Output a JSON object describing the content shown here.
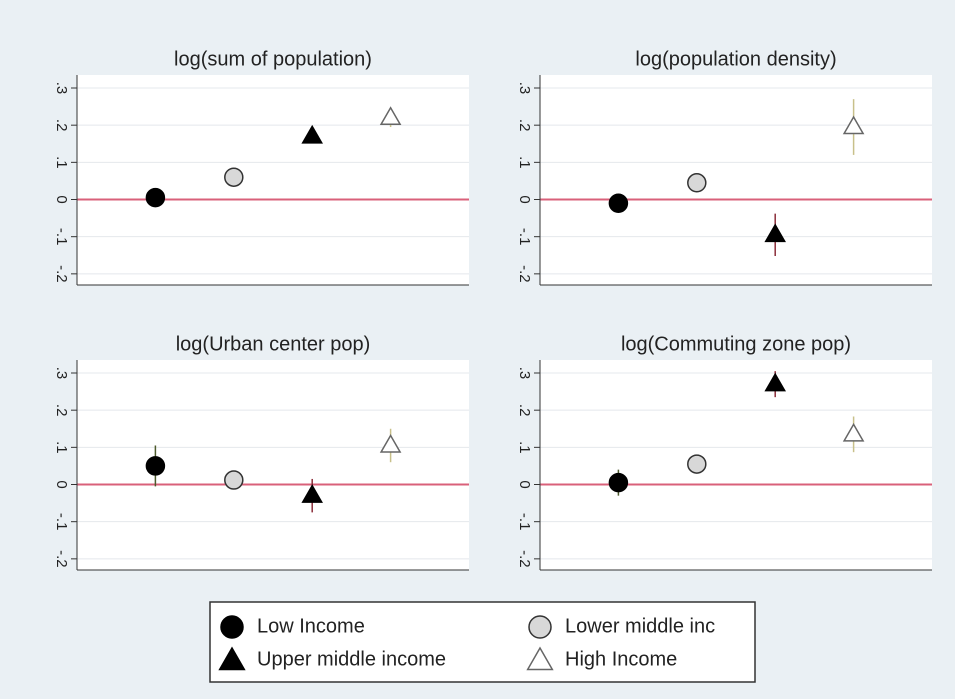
{
  "chart_data": [
    {
      "type": "dot-errorbar",
      "title": "log(sum of population)",
      "ylim": [
        -0.23,
        0.335
      ],
      "xlim": [
        0,
        5
      ],
      "yticks": [
        {
          "value": -0.2,
          "label": "-.2"
        },
        {
          "value": -0.1,
          "label": "-.1"
        },
        0,
        {
          "value": 0.1,
          "label": ".1"
        },
        {
          "value": 0.2,
          "label": ".2"
        },
        {
          "value": 0.3,
          "label": ".3"
        }
      ],
      "grid": true,
      "refline": {
        "value": 0,
        "color": "#d9607a"
      },
      "series": [
        {
          "name": "Low Income",
          "marker": "circle",
          "color": "#000000",
          "stroke": "#000000",
          "error_color": "#4d5a2c",
          "values": [
            0.005
          ],
          "errors": [
            0.01
          ]
        },
        {
          "name": "Lower middle inc",
          "marker": "circle",
          "color": "#d8d8d8",
          "stroke": "#333333",
          "error_color": "#8fa0b0",
          "values": [
            0.06
          ],
          "errors": [
            0.01
          ]
        },
        {
          "name": "Upper middle income",
          "marker": "triangle",
          "color": "#000000",
          "stroke": "#000000",
          "error_color": "#8b2d3a",
          "values": [
            0.17
          ],
          "errors": [
            0.015
          ]
        },
        {
          "name": "High Income",
          "marker": "triangle",
          "color": "#ffffff",
          "stroke": "#666666",
          "error_color": "#c8c08a",
          "values": [
            0.22
          ],
          "errors": [
            0.025
          ]
        }
      ]
    },
    {
      "type": "dot-errorbar",
      "title": "log(population density)",
      "ylim": [
        -0.23,
        0.335
      ],
      "xlim": [
        0,
        5
      ],
      "yticks": [
        {
          "value": -0.2,
          "label": "-.2"
        },
        {
          "value": -0.1,
          "label": "-.1"
        },
        0,
        {
          "value": 0.1,
          "label": ".1"
        },
        {
          "value": 0.2,
          "label": ".2"
        },
        {
          "value": 0.3,
          "label": ".3"
        }
      ],
      "grid": true,
      "refline": {
        "value": 0,
        "color": "#d9607a"
      },
      "series": [
        {
          "name": "Low Income",
          "marker": "circle",
          "color": "#000000",
          "stroke": "#000000",
          "error_color": "#4d5a2c",
          "values": [
            -0.01
          ],
          "errors": [
            0.01
          ]
        },
        {
          "name": "Lower middle inc",
          "marker": "circle",
          "color": "#d8d8d8",
          "stroke": "#333333",
          "error_color": "#8fa0b0",
          "values": [
            0.045
          ],
          "errors": [
            0.01
          ]
        },
        {
          "name": "Upper middle income",
          "marker": "triangle",
          "color": "#000000",
          "stroke": "#000000",
          "error_color": "#8b2d3a",
          "values": [
            -0.095
          ],
          "errors": [
            0.057
          ]
        },
        {
          "name": "High Income",
          "marker": "triangle",
          "color": "#ffffff",
          "stroke": "#666666",
          "error_color": "#c8c08a",
          "values": [
            0.195
          ],
          "errors": [
            0.075
          ]
        }
      ]
    },
    {
      "type": "dot-errorbar",
      "title": "log(Urban center pop)",
      "ylim": [
        -0.23,
        0.335
      ],
      "xlim": [
        0,
        5
      ],
      "yticks": [
        {
          "value": -0.2,
          "label": "-.2"
        },
        {
          "value": -0.1,
          "label": "-.1"
        },
        0,
        {
          "value": 0.1,
          "label": ".1"
        },
        {
          "value": 0.2,
          "label": ".2"
        },
        {
          "value": 0.3,
          "label": ".3"
        }
      ],
      "grid": true,
      "refline": {
        "value": 0,
        "color": "#d9607a"
      },
      "series": [
        {
          "name": "Low Income",
          "marker": "circle",
          "color": "#000000",
          "stroke": "#000000",
          "error_color": "#4d5a2c",
          "values": [
            0.05
          ],
          "errors": [
            0.055
          ]
        },
        {
          "name": "Lower middle inc",
          "marker": "circle",
          "color": "#d8d8d8",
          "stroke": "#333333",
          "error_color": "#8fa0b0",
          "values": [
            0.012
          ],
          "errors": [
            0.01
          ]
        },
        {
          "name": "Upper middle income",
          "marker": "triangle",
          "color": "#000000",
          "stroke": "#000000",
          "error_color": "#8b2d3a",
          "values": [
            -0.03
          ],
          "errors": [
            0.045
          ]
        },
        {
          "name": "High Income",
          "marker": "triangle",
          "color": "#ffffff",
          "stroke": "#666666",
          "error_color": "#c8c08a",
          "values": [
            0.105
          ],
          "errors": [
            0.045
          ]
        }
      ]
    },
    {
      "type": "dot-errorbar",
      "title": "log(Commuting zone pop)",
      "ylim": [
        -0.23,
        0.335
      ],
      "xlim": [
        0,
        5
      ],
      "yticks": [
        {
          "value": -0.2,
          "label": "-.2"
        },
        {
          "value": -0.1,
          "label": "-.1"
        },
        0,
        {
          "value": 0.1,
          "label": ".1"
        },
        {
          "value": 0.2,
          "label": ".2"
        },
        {
          "value": 0.3,
          "label": ".3"
        }
      ],
      "grid": true,
      "refline": {
        "value": 0,
        "color": "#d9607a"
      },
      "series": [
        {
          "name": "Low Income",
          "marker": "circle",
          "color": "#000000",
          "stroke": "#000000",
          "error_color": "#4d5a2c",
          "values": [
            0.005
          ],
          "errors": [
            0.035
          ]
        },
        {
          "name": "Lower middle inc",
          "marker": "circle",
          "color": "#d8d8d8",
          "stroke": "#333333",
          "error_color": "#8fa0b0",
          "values": [
            0.055
          ],
          "errors": [
            0.01
          ]
        },
        {
          "name": "Upper middle income",
          "marker": "triangle",
          "color": "#000000",
          "stroke": "#000000",
          "error_color": "#8b2d3a",
          "values": [
            0.27
          ],
          "errors": [
            0.035
          ]
        },
        {
          "name": "High Income",
          "marker": "triangle",
          "color": "#ffffff",
          "stroke": "#666666",
          "error_color": "#c8c08a",
          "values": [
            0.135
          ],
          "errors": [
            0.048
          ]
        }
      ]
    }
  ]
}
